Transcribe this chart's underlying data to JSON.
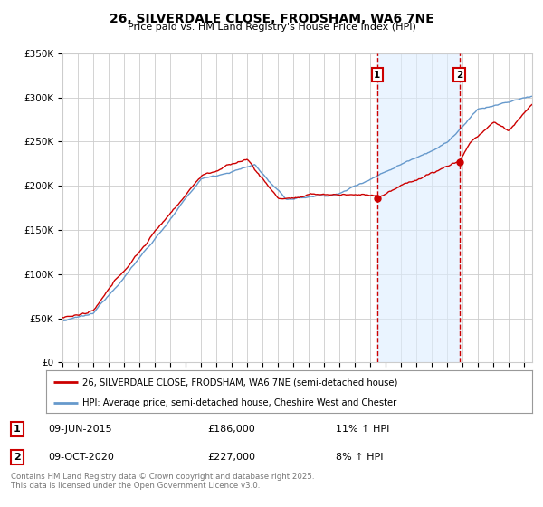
{
  "title": "26, SILVERDALE CLOSE, FRODSHAM, WA6 7NE",
  "subtitle": "Price paid vs. HM Land Registry's House Price Index (HPI)",
  "ylim": [
    0,
    350000
  ],
  "xlim_start": 1995.0,
  "xlim_end": 2025.5,
  "transaction1": {
    "date": "09-JUN-2015",
    "price": 186000,
    "hpi_pct": "11%",
    "label": "1"
  },
  "transaction2": {
    "date": "09-OCT-2020",
    "price": 227000,
    "hpi_pct": "8%",
    "label": "2"
  },
  "transaction1_x": 2015.44,
  "transaction2_x": 2020.77,
  "transaction1_y": 186000,
  "transaction2_y": 227000,
  "legend_line1": "26, SILVERDALE CLOSE, FRODSHAM, WA6 7NE (semi-detached house)",
  "legend_line2": "HPI: Average price, semi-detached house, Cheshire West and Chester",
  "footer": "Contains HM Land Registry data © Crown copyright and database right 2025.\nThis data is licensed under the Open Government Licence v3.0.",
  "line_color_red": "#cc0000",
  "line_color_blue": "#6699cc",
  "fill_color_blue": "#ddeeff",
  "grid_color": "#cccccc",
  "background_color": "#ffffff",
  "vline_color": "#cc0000",
  "annotation_box_color": "#cc0000",
  "marker_color": "#cc0000"
}
